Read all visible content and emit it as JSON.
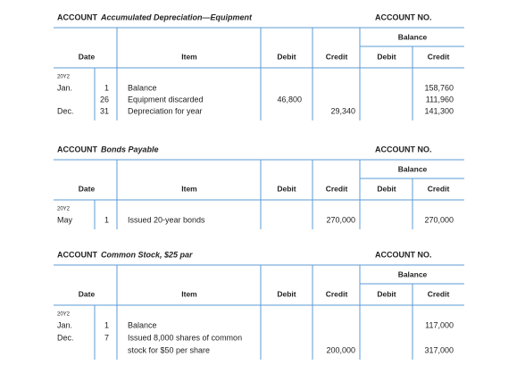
{
  "accounts": [
    {
      "label": "ACCOUNT",
      "name": "Accumulated Depreciation—Equipment",
      "number_label": "ACCOUNT NO.",
      "balance_label": "Balance",
      "columns": {
        "date": "Date",
        "item": "Item",
        "debit": "Debit",
        "credit": "Credit",
        "balance_debit": "Debit",
        "balance_credit": "Credit"
      },
      "year": "20Y2",
      "rows": [
        {
          "month": "Jan.",
          "day": "1",
          "item": "Balance",
          "balance_credit": "158,760"
        },
        {
          "day": "26",
          "item": "Equipment discarded",
          "debit": "46,800",
          "balance_credit": "111,960"
        },
        {
          "month": "Dec.",
          "day": "31",
          "item": "Depreciation for year",
          "credit": "29,340",
          "balance_credit": "141,300"
        }
      ]
    },
    {
      "label": "ACCOUNT",
      "name": "Bonds Payable",
      "number_label": "ACCOUNT NO.",
      "balance_label": "Balance",
      "columns": {
        "date": "Date",
        "item": "Item",
        "debit": "Debit",
        "credit": "Credit",
        "balance_debit": "Debit",
        "balance_credit": "Credit"
      },
      "year": "20Y2",
      "rows": [
        {
          "month": "May",
          "day": "1",
          "item": "Issued 20-year bonds",
          "credit": "270,000",
          "balance_credit": "270,000"
        }
      ]
    },
    {
      "label": "ACCOUNT",
      "name": "Common Stock, $25 par",
      "number_label": "ACCOUNT NO.",
      "balance_label": "Balance",
      "columns": {
        "date": "Date",
        "item": "Item",
        "debit": "Debit",
        "credit": "Credit",
        "balance_debit": "Debit",
        "balance_credit": "Credit"
      },
      "year": "20Y2",
      "rows": [
        {
          "month": "Jan.",
          "day": "1",
          "item": "Balance",
          "balance_credit": "117,000"
        },
        {
          "month": "Dec.",
          "day": "7",
          "item": "Issued 8,000 shares of common"
        },
        {
          "item": "stock for $50 per share",
          "credit": "200,000",
          "balance_credit": "317,000"
        }
      ]
    }
  ]
}
